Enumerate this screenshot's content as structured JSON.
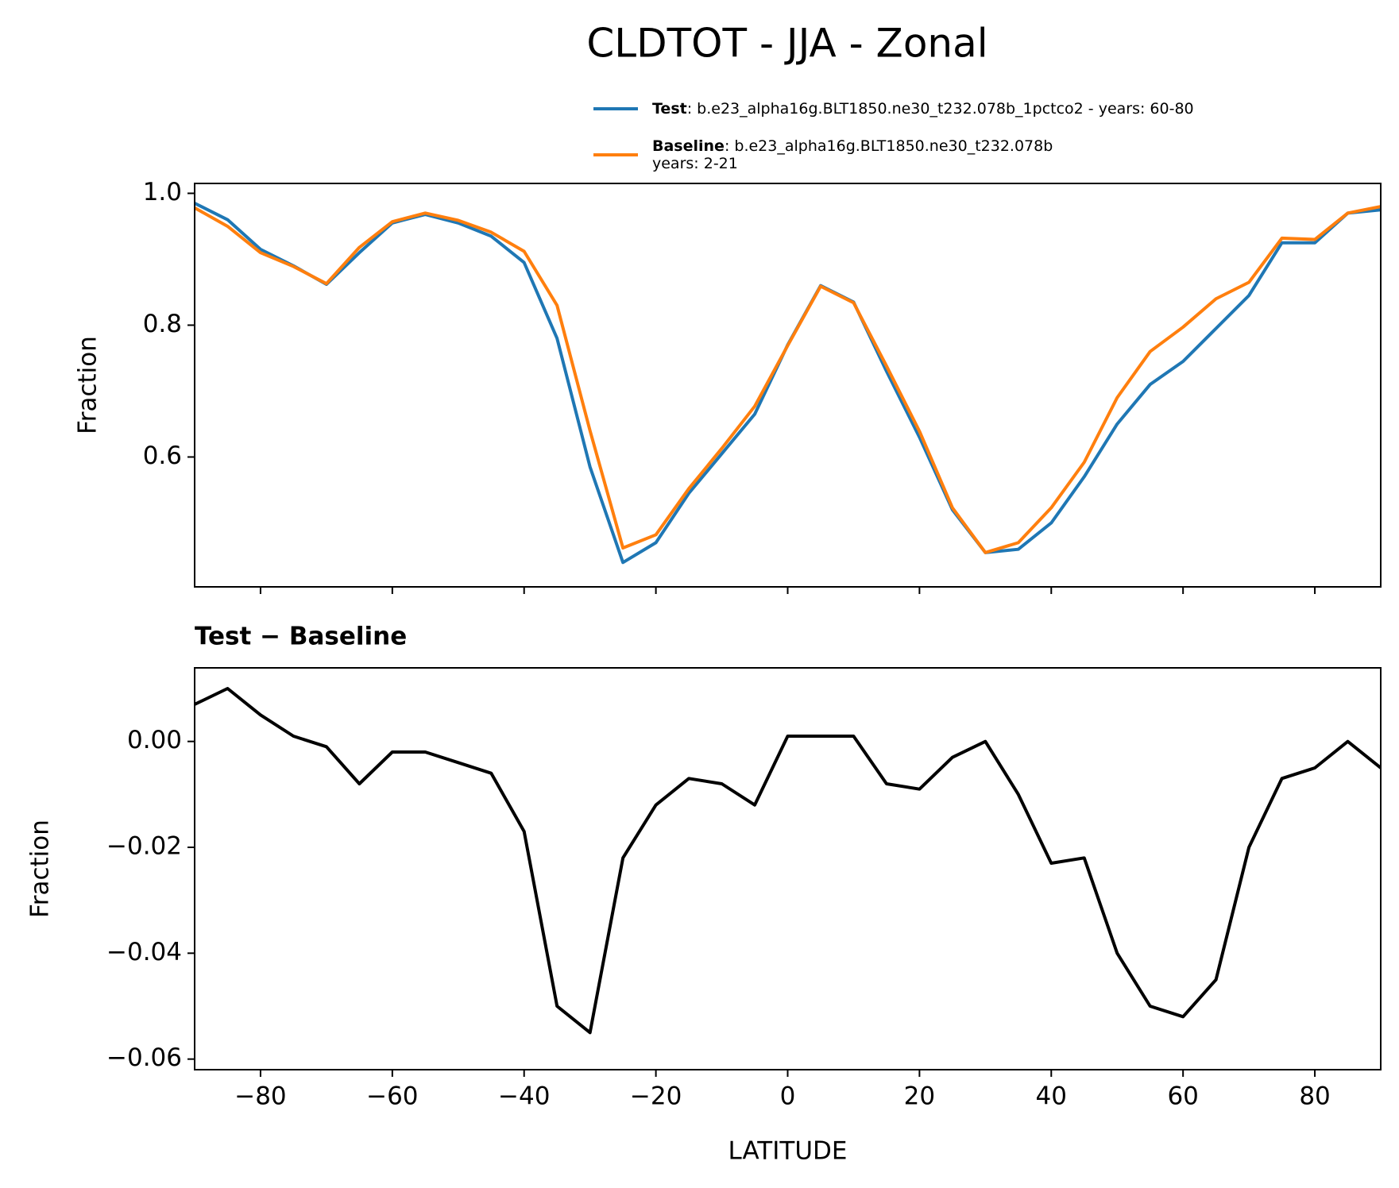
{
  "chart_data": [
    {
      "type": "line",
      "title": "CLDTOT - JJA - Zonal",
      "ylabel": "Fraction",
      "x": [
        -90,
        -85,
        -80,
        -75,
        -70,
        -65,
        -60,
        -55,
        -50,
        -45,
        -40,
        -35,
        -30,
        -25,
        -20,
        -15,
        -10,
        -5,
        0,
        5,
        10,
        15,
        20,
        25,
        30,
        35,
        40,
        45,
        50,
        55,
        60,
        65,
        70,
        75,
        80,
        85,
        90
      ],
      "series": [
        {
          "name": "Test",
          "color": "#1f77b4",
          "legend_text": [
            ": b.e23_alpha16g.BLT1850.ne30_t232.078b_1pctco2 - years: 60-80"
          ],
          "values": [
            0.985,
            0.96,
            0.915,
            0.89,
            0.862,
            0.91,
            0.955,
            0.968,
            0.955,
            0.935,
            0.895,
            0.78,
            0.585,
            0.44,
            0.47,
            0.545,
            0.605,
            0.665,
            0.77,
            0.86,
            0.835,
            0.73,
            0.63,
            0.52,
            0.455,
            0.46,
            0.5,
            0.57,
            0.65,
            0.71,
            0.745,
            0.795,
            0.845,
            0.925,
            0.925,
            0.97,
            0.975
          ]
        },
        {
          "name": "Baseline",
          "color": "#ff7f0e",
          "legend_text": [
            ": b.e23_alpha16g.BLT1850.ne30_t232.078b",
            "years: 2-21"
          ],
          "values": [
            0.978,
            0.95,
            0.91,
            0.889,
            0.863,
            0.918,
            0.957,
            0.97,
            0.959,
            0.941,
            0.912,
            0.83,
            0.64,
            0.462,
            0.482,
            0.552,
            0.613,
            0.677,
            0.769,
            0.859,
            0.834,
            0.738,
            0.639,
            0.523,
            0.455,
            0.47,
            0.523,
            0.592,
            0.69,
            0.76,
            0.797,
            0.84,
            0.865,
            0.932,
            0.93,
            0.97,
            0.98
          ]
        }
      ],
      "xlim": [
        -90,
        90
      ],
      "xticks": [
        -80,
        -60,
        -40,
        -20,
        0,
        20,
        40,
        60,
        80
      ],
      "ylim": [
        0.403,
        1.015
      ],
      "yticks": [
        0.6,
        0.8,
        {
          "value": 1.0,
          "label": "1.0"
        }
      ],
      "legend": "upper right"
    },
    {
      "type": "line",
      "subtitle": "Test − Baseline",
      "ylabel": "Fraction",
      "xlabel": "LATITUDE",
      "x": [
        -90,
        -85,
        -80,
        -75,
        -70,
        -65,
        -60,
        -55,
        -50,
        -45,
        -40,
        -35,
        -30,
        -25,
        -20,
        -15,
        -10,
        -5,
        0,
        5,
        10,
        15,
        20,
        25,
        30,
        35,
        40,
        45,
        50,
        55,
        60,
        65,
        70,
        75,
        80,
        85,
        90
      ],
      "series": [
        {
          "color": "#000000",
          "values": [
            0.007,
            0.01,
            0.005,
            0.001,
            -0.001,
            -0.008,
            -0.002,
            -0.002,
            -0.004,
            -0.006,
            -0.017,
            -0.05,
            -0.055,
            -0.022,
            -0.012,
            -0.007,
            -0.008,
            -0.012,
            0.001,
            0.001,
            0.001,
            -0.008,
            -0.009,
            -0.003,
            0.0,
            -0.01,
            -0.023,
            -0.022,
            -0.04,
            -0.05,
            -0.052,
            -0.045,
            -0.02,
            -0.007,
            -0.005,
            0.0,
            -0.005
          ]
        }
      ],
      "xlim": [
        -90,
        90
      ],
      "xticks": [
        {
          "value": -80,
          "label": "−80"
        },
        {
          "value": -60,
          "label": "−60"
        },
        {
          "value": -40,
          "label": "−40"
        },
        {
          "value": -20,
          "label": "−20"
        },
        0,
        20,
        40,
        60,
        80
      ],
      "ylim": [
        -0.062,
        0.0139
      ],
      "yticks": [
        {
          "value": -0.06,
          "label": "−0.06"
        },
        {
          "value": -0.04,
          "label": "−0.04"
        },
        {
          "value": -0.02,
          "label": "−0.02"
        },
        {
          "value": 0,
          "label": "0.00"
        }
      ]
    }
  ]
}
